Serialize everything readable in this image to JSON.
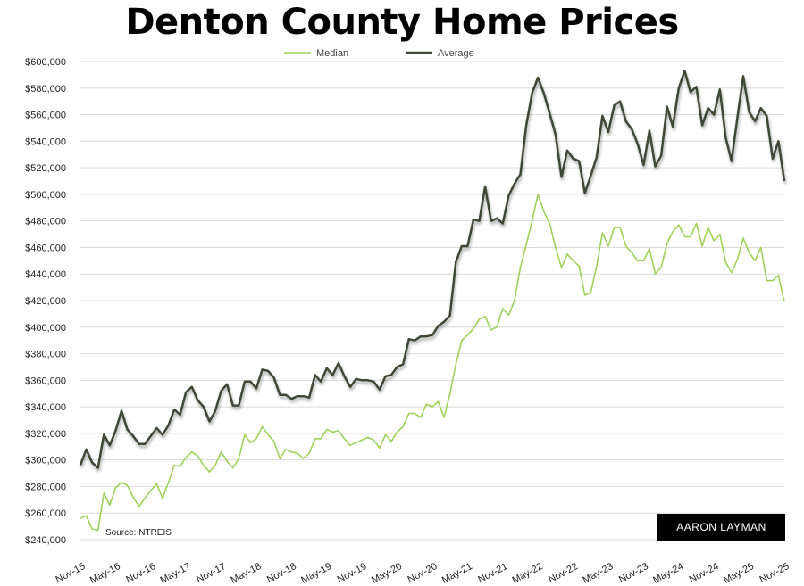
{
  "chart_data": {
    "type": "line",
    "title": "Denton County Home Prices",
    "source": "Source: NTREIS",
    "logo_text": "AARON LAYMAN",
    "xlabel": "",
    "ylabel": "",
    "ylim": [
      240000,
      600000
    ],
    "y_ticks": [
      240000,
      260000,
      280000,
      300000,
      320000,
      340000,
      360000,
      380000,
      400000,
      420000,
      440000,
      460000,
      480000,
      500000,
      520000,
      540000,
      560000,
      580000,
      600000
    ],
    "y_tick_labels": [
      "$240,000",
      "$260,000",
      "$280,000",
      "$300,000",
      "$320,000",
      "$340,000",
      "$360,000",
      "$380,000",
      "$400,000",
      "$420,000",
      "$440,000",
      "$460,000",
      "$480,000",
      "$500,000",
      "$520,000",
      "$540,000",
      "$560,000",
      "$580,000",
      "$600,000"
    ],
    "x_start": "Nov-15",
    "x_tick_labels": [
      "Nov-15",
      "May-16",
      "Nov-16",
      "May-17",
      "Nov-17",
      "May-18",
      "Nov-18",
      "May-19",
      "Nov-19",
      "May-20",
      "Nov-20",
      "May-21",
      "Nov-21",
      "May-22",
      "Nov-22",
      "May-23",
      "Nov-23",
      "May-24",
      "Nov-24",
      "May-25",
      "Nov-25"
    ],
    "grid": "horizontal",
    "legend_position": "top-center",
    "series": [
      {
        "name": "Median",
        "color": "#9fd15a",
        "values": [
          256,
          258,
          248,
          247,
          275,
          266,
          279,
          283,
          281,
          272,
          265,
          271,
          277,
          282,
          271,
          283,
          296,
          295,
          302,
          306,
          303,
          296,
          291,
          296,
          306,
          299,
          294,
          301,
          319,
          313,
          316,
          325,
          319,
          314,
          301,
          308,
          306,
          305,
          301,
          305,
          316,
          316,
          323,
          321,
          322,
          316,
          311,
          313,
          315,
          317,
          315,
          309,
          319,
          314,
          321,
          325,
          335,
          335,
          332,
          342,
          340,
          344,
          332,
          350,
          372,
          390,
          394,
          399,
          406,
          408,
          398,
          400,
          414,
          409,
          420,
          445,
          462,
          480,
          500,
          487,
          478,
          460,
          445,
          455,
          450,
          446,
          424,
          426,
          446,
          471,
          461,
          475,
          475,
          461,
          456,
          450,
          450,
          459,
          440,
          445,
          463,
          472,
          477,
          468,
          468,
          478,
          461,
          475,
          465,
          470,
          449,
          441,
          451,
          467,
          456,
          450,
          460,
          435,
          435,
          439,
          419
        ]
      },
      {
        "name": "Average",
        "color": "#3e4a36",
        "values": [
          296,
          308,
          298,
          294,
          319,
          311,
          322,
          337,
          323,
          318,
          312,
          312,
          318,
          324,
          319,
          326,
          338,
          334,
          351,
          355,
          345,
          340,
          329,
          337,
          352,
          357,
          341,
          341,
          359,
          359,
          354,
          368,
          367,
          362,
          349,
          349,
          346,
          348,
          348,
          347,
          364,
          359,
          369,
          364,
          373,
          363,
          355,
          361,
          360,
          360,
          359,
          353,
          363,
          364,
          370,
          372,
          391,
          390,
          393,
          393,
          394,
          401,
          404,
          409,
          449,
          461,
          461,
          481,
          480,
          506,
          480,
          482,
          478,
          499,
          508,
          515,
          552,
          576,
          588,
          576,
          561,
          545,
          513,
          533,
          527,
          525,
          501,
          514,
          528,
          559,
          547,
          567,
          570,
          555,
          549,
          538,
          522,
          548,
          521,
          529,
          566,
          551,
          580,
          593,
          577,
          581,
          552,
          565,
          560,
          579,
          543,
          525,
          558,
          589,
          562,
          555,
          565,
          559,
          527,
          540,
          510
        ]
      }
    ],
    "value_units": "thousands USD"
  }
}
